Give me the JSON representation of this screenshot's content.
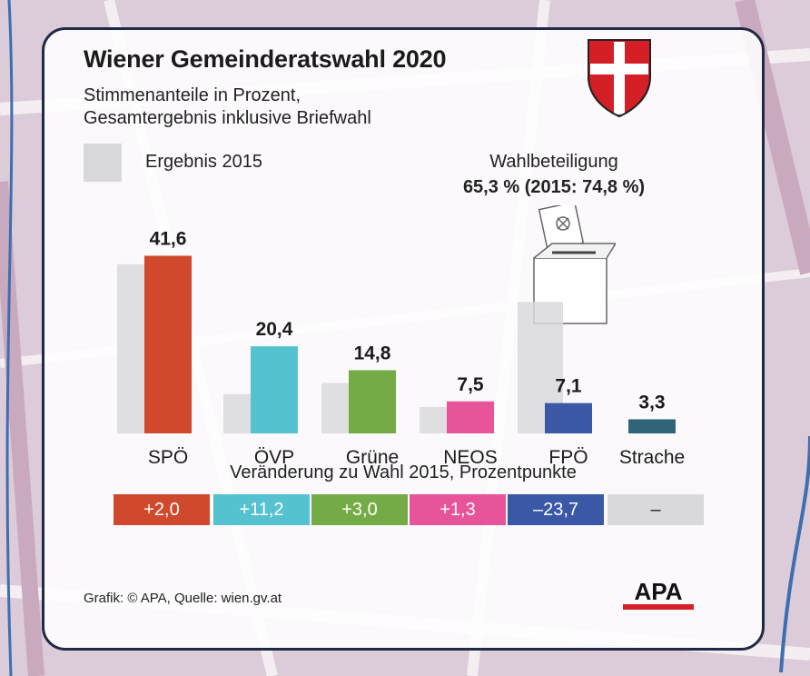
{
  "header": {
    "title": "Wiener Gemeinderatswahl 2020",
    "subtitle_line1": "Stimmenanteile in Prozent,",
    "subtitle_line2": "Gesamtergebnis inklusive Briefwahl"
  },
  "legend": {
    "previous_label": "Ergebnis 2015"
  },
  "turnout": {
    "label": "Wahlbeteiligung",
    "value": "65,3 % (2015: 74,8 %)"
  },
  "change": {
    "title": "Veränderung zu Wahl 2015, Prozentpunkte",
    "values": [
      "+2,0",
      "+11,2",
      "+3,0",
      "+1,3",
      "–23,7",
      "–"
    ]
  },
  "footer": {
    "source": "Grafik: © APA, Quelle: wien.gv.at"
  },
  "logo": {
    "text": "APA"
  },
  "colors": {
    "SPÖ": "#d1492d",
    "ÖVP": "#55c2d0",
    "Grüne": "#74ab46",
    "NEOS": "#e8549a",
    "FPÖ": "#3a58a6",
    "Strache": "#2f6577",
    "previous": "#d9d9dc",
    "frame": "#1f2a44"
  },
  "chart_data": {
    "type": "bar",
    "categories": [
      "SPÖ",
      "ÖVP",
      "Grüne",
      "NEOS",
      "FPÖ",
      "Strache"
    ],
    "series": [
      {
        "name": "Ergebnis 2015",
        "values": [
          39.6,
          9.2,
          11.8,
          6.2,
          30.8,
          null
        ]
      },
      {
        "values": [
          41.6,
          20.4,
          14.8,
          7.5,
          7.1,
          3.3
        ]
      }
    ],
    "value_labels": [
      "41,6",
      "20,4",
      "14,8",
      "7,5",
      "7,1",
      "3,3"
    ],
    "ylim": [
      0,
      45
    ],
    "grid": false,
    "legend_placement": "top-left"
  }
}
